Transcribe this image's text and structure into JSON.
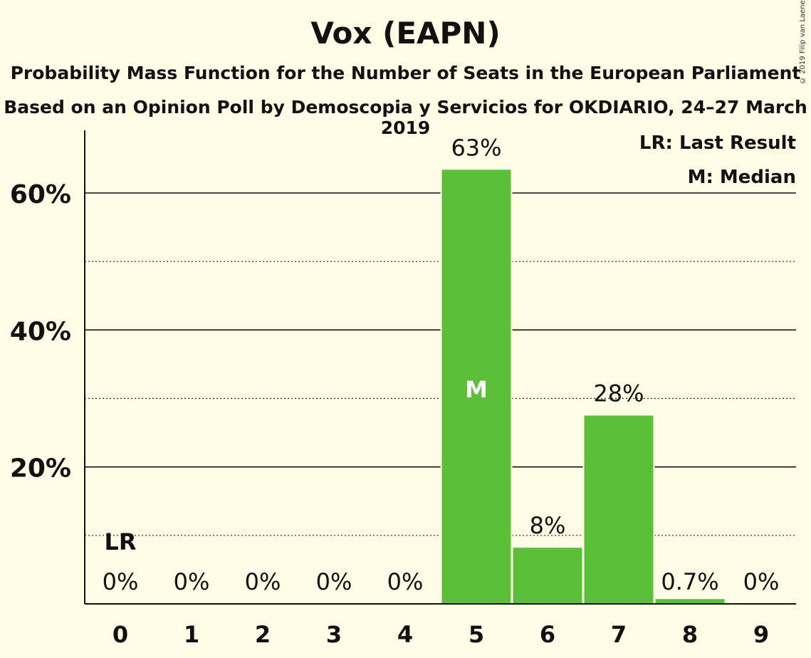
{
  "chart_data": {
    "type": "bar",
    "title": "Vox (EAPN)",
    "subtitle": "Probability Mass Function for the Number of Seats in the European Parliament",
    "subtitle2": "Based on an Opinion Poll by Demoscopia y Servicios for OKDIARIO, 24–27 March 2019",
    "copyright": "© 2019 Filip van Laenen",
    "categories": [
      "0",
      "1",
      "2",
      "3",
      "4",
      "5",
      "6",
      "7",
      "8",
      "9"
    ],
    "values": [
      0,
      0,
      0,
      0,
      0,
      63.4,
      8.2,
      27.5,
      0.7,
      0
    ],
    "value_labels": [
      "0%",
      "0%",
      "0%",
      "0%",
      "0%",
      "63%",
      "8%",
      "28%",
      "0.7%",
      "0%"
    ],
    "ylim": [
      0,
      69
    ],
    "y_ticks": [
      {
        "value": 20,
        "label": "20%"
      },
      {
        "value": 40,
        "label": "40%"
      },
      {
        "value": 60,
        "label": "60%"
      }
    ],
    "minor_gridlines": [
      10,
      30,
      50
    ],
    "last_result_index": 0,
    "last_result_label": "LR",
    "median_index": 5,
    "median_label": "M",
    "legend": [
      "LR: Last Result",
      "M: Median"
    ],
    "legend_position": "top-right",
    "bar_color": "#5cbf38",
    "background_color": "#fffde6"
  }
}
